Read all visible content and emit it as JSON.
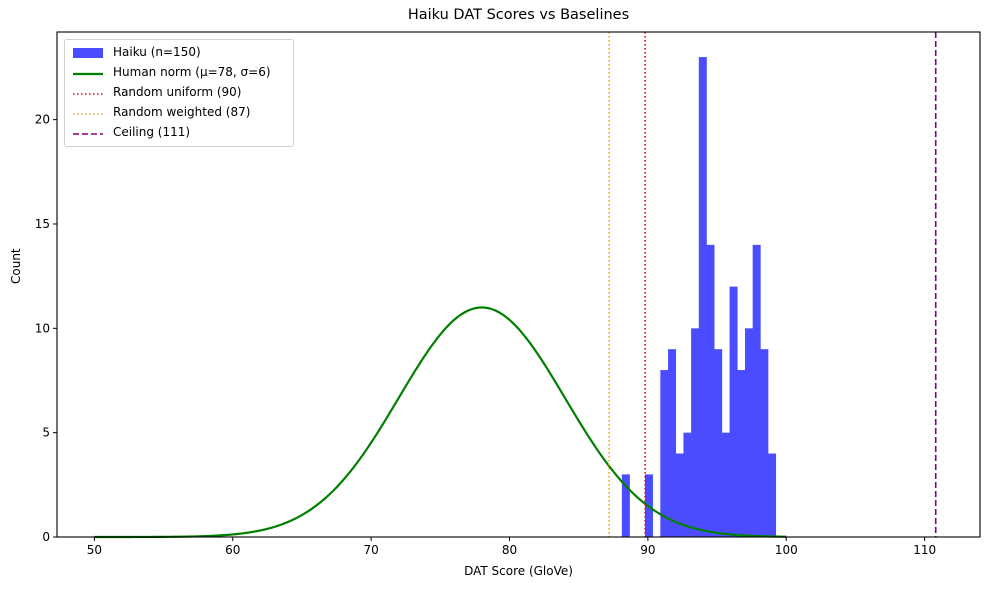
{
  "chart_data": {
    "type": "bar",
    "title": "Haiku DAT Scores vs Baselines",
    "xlabel": "DAT Score (GloVe)",
    "ylabel": "Count",
    "xlim": [
      47.3,
      114.0
    ],
    "ylim": [
      0,
      24.2
    ],
    "xticks": [
      50,
      60,
      70,
      80,
      90,
      100,
      110
    ],
    "yticks": [
      0,
      5,
      10,
      15,
      20
    ],
    "grid": false,
    "legend_position": "upper left",
    "histogram": {
      "name": "Haiku (n=150)",
      "color": "#4c4cff",
      "bin_start": 88.12,
      "bin_width": 0.556,
      "counts": [
        3,
        0,
        0,
        3,
        0,
        8,
        9,
        4,
        5,
        10,
        23,
        14,
        9,
        5,
        12,
        8,
        10,
        14,
        9,
        4
      ]
    },
    "curve": {
      "name": "Human norm (μ=78, σ=6)",
      "color": "#008000",
      "mu": 78,
      "sigma": 6,
      "peak": 11.0,
      "x_range": [
        50,
        100
      ]
    },
    "vlines": [
      {
        "name": "Random uniform (90)",
        "x": 89.8,
        "color": "#ff0000",
        "style": "dotted"
      },
      {
        "name": "Random weighted (87)",
        "x": 87.2,
        "color": "#ffa500",
        "style": "dotted"
      },
      {
        "name": "Ceiling (111)",
        "x": 110.8,
        "color": "#800080",
        "style": "dashed"
      }
    ]
  },
  "legend": {
    "items": [
      {
        "label": "Haiku (n=150)",
        "kind": "patch",
        "color": "#4c4cff"
      },
      {
        "label": "Human norm (μ=78, σ=6)",
        "kind": "solid",
        "color": "#008000"
      },
      {
        "label": "Random uniform (90)",
        "kind": "dotted",
        "color": "#ff0000"
      },
      {
        "label": "Random weighted (87)",
        "kind": "dotted",
        "color": "#ffa500"
      },
      {
        "label": "Ceiling (111)",
        "kind": "dashed",
        "color": "#800080"
      }
    ]
  }
}
